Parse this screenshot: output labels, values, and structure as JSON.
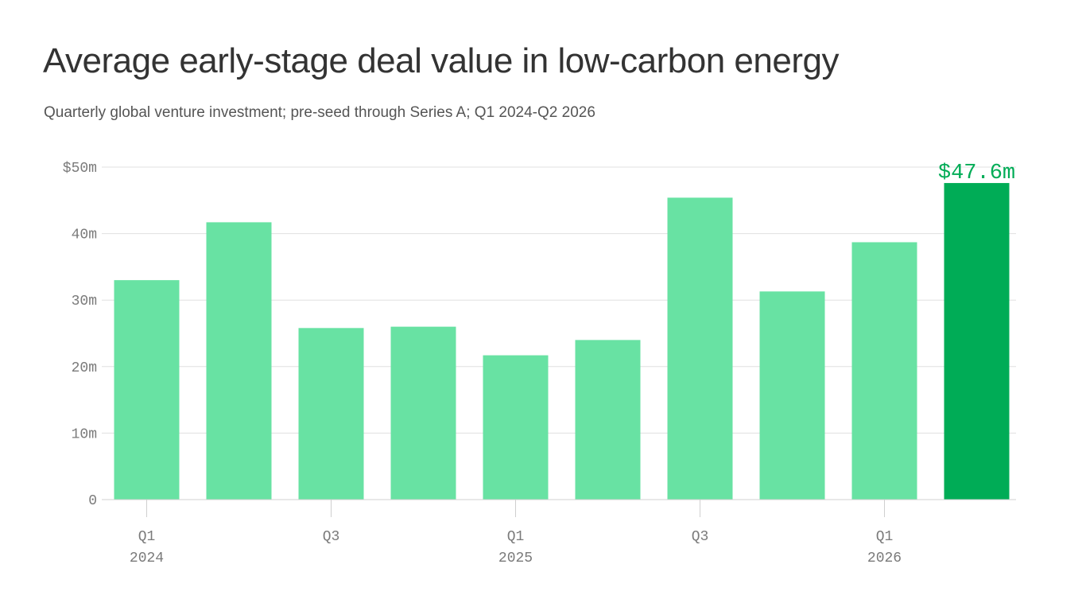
{
  "header": {
    "title": "Average early-stage deal value in low-carbon energy",
    "subtitle": "Quarterly global venture investment; pre-seed through Series A; Q1 2024-Q2 2026"
  },
  "colors": {
    "bar": "#68e2a3",
    "highlight": "#00ac56",
    "label": "#00ac56"
  },
  "chart_data": {
    "type": "bar",
    "title": "Average early-stage deal value in low-carbon energy",
    "subtitle": "Quarterly global venture investment; pre-seed through Series A; Q1 2024-Q2 2026",
    "categories": [
      "Q1 2024",
      "Q2 2024",
      "Q3 2024",
      "Q4 2024",
      "Q1 2025",
      "Q2 2025",
      "Q3 2025",
      "Q4 2025",
      "Q1 2026",
      "Q2 2026"
    ],
    "values": [
      33.0,
      41.7,
      25.8,
      26.0,
      21.7,
      24.0,
      45.4,
      31.3,
      38.7,
      47.6
    ],
    "unit": "$m",
    "ylim": [
      0,
      50
    ],
    "y_ticks": [
      {
        "value": 0,
        "label": "0"
      },
      {
        "value": 10,
        "label": "10m"
      },
      {
        "value": 20,
        "label": "20m"
      },
      {
        "value": 30,
        "label": "30m"
      },
      {
        "value": 40,
        "label": "40m"
      },
      {
        "value": 50,
        "label": "$50m"
      }
    ],
    "x_ticks": [
      {
        "index": 0,
        "line1": "Q1",
        "line2": "2024"
      },
      {
        "index": 2,
        "line1": "Q3",
        "line2": ""
      },
      {
        "index": 4,
        "line1": "Q1",
        "line2": "2025"
      },
      {
        "index": 6,
        "line1": "Q3",
        "line2": ""
      },
      {
        "index": 8,
        "line1": "Q1",
        "line2": "2026"
      }
    ],
    "highlight_index": 9,
    "annotations": [
      {
        "index": 9,
        "text": "$47.6m"
      }
    ],
    "grid": true,
    "legend": "none"
  }
}
